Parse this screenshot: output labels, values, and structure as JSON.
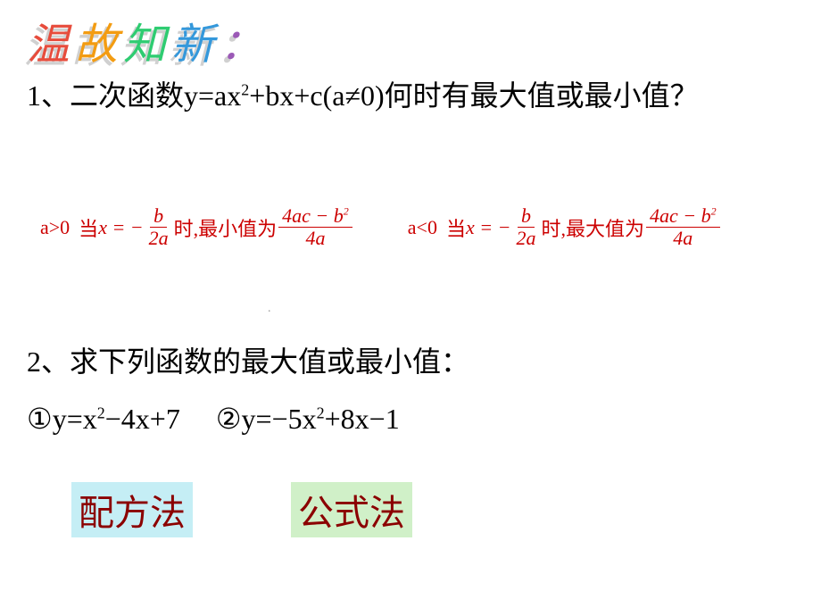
{
  "title": {
    "full": "温故知新：",
    "chars": [
      "温",
      "故",
      "知",
      "新",
      "："
    ],
    "colors": [
      "#e74c3c",
      "#f39c12",
      "#2ecc71",
      "#3498db",
      "#9b59b6"
    ],
    "font": "华文行楷",
    "fontsize": 48,
    "shadow_color": "#d0d0d0"
  },
  "question1": {
    "prefix": "1、二次函数y=ax",
    "sup1": "2",
    "mid": "+bx+c(a≠0)何时有最大值或最小值？",
    "fontsize": 32,
    "color": "#000000"
  },
  "formulas": {
    "font": "Times New Roman / SimSun",
    "fontsize": 22,
    "red": "#cc0000",
    "left": {
      "cond": "a>0",
      "when": "当",
      "x_eq": "x = −",
      "frac1_num": "b",
      "frac1_den": "2a",
      "mid": "时,最小值为",
      "frac2_num_a": "4ac − b",
      "frac2_num_sup": "2",
      "frac2_den": "4a"
    },
    "right": {
      "cond": "a<0",
      "when": "当",
      "x_eq": "x = −",
      "frac1_num": "b",
      "frac1_den": "2a",
      "mid": "时,最大值为",
      "frac2_num_a": "4ac − b",
      "frac2_num_sup": "2",
      "frac2_den": "4a"
    }
  },
  "slide_marker": ".",
  "question2": {
    "text": "2、求下列函数的最大值或最小值：",
    "fontsize": 32
  },
  "expressions": {
    "fontsize": 32,
    "e1_a": "①y=x",
    "e1_sup": "2",
    "e1_b": "−4x+7",
    "e2_a": "②y=−5x",
    "e2_sup": "2",
    "e2_b": "+8x−1"
  },
  "methods": {
    "fontsize": 40,
    "font": "KaiTi",
    "color": "#8b0000",
    "m1": {
      "label": "配方法",
      "bg": "#c5eef5"
    },
    "m2": {
      "label": "公式法",
      "bg": "#d0f0c8"
    }
  }
}
